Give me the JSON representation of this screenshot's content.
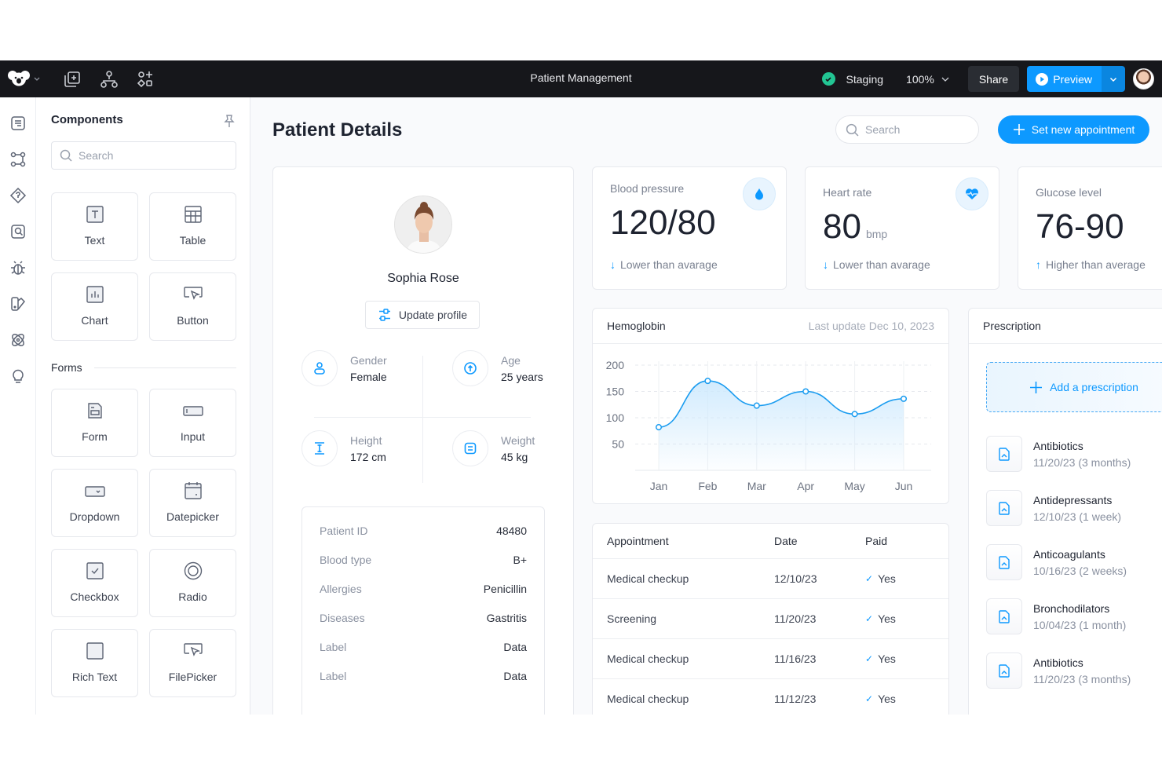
{
  "topbar": {
    "title": "Patient Management",
    "environment": "Staging",
    "environment_status": "ok",
    "zoom": "100%",
    "share_label": "Share",
    "preview_label": "Preview",
    "icons": [
      "koala-logo-icon",
      "add-page-icon",
      "component-tree-icon",
      "add-component-icon"
    ]
  },
  "rail": {
    "icons": [
      "pages-icon",
      "workflows-icon",
      "datasource-icon",
      "queries-icon",
      "debug-icon",
      "theme-icon",
      "plugins-icon",
      "tips-icon"
    ]
  },
  "components_panel": {
    "title": "Components",
    "search_placeholder": "Search",
    "items": [
      {
        "label": "Text",
        "icon": "text-icon"
      },
      {
        "label": "Table",
        "icon": "table-icon"
      },
      {
        "label": "Chart",
        "icon": "chart-icon"
      },
      {
        "label": "Button",
        "icon": "button-icon"
      }
    ],
    "forms_section": "Forms",
    "form_items": [
      {
        "label": "Form",
        "icon": "form-icon"
      },
      {
        "label": "Input",
        "icon": "input-icon"
      },
      {
        "label": "Dropdown",
        "icon": "dropdown-icon"
      },
      {
        "label": "Datepicker",
        "icon": "calendar-icon"
      },
      {
        "label": "Checkbox",
        "icon": "checkbox-icon"
      },
      {
        "label": "Radio",
        "icon": "radio-icon"
      },
      {
        "label": "Rich Text",
        "icon": "rich-text-icon"
      },
      {
        "label": "FilePicker",
        "icon": "filepicker-icon"
      }
    ]
  },
  "page": {
    "title": "Patient Details",
    "search_placeholder": "Search",
    "new_appointment_label": "Set new appointment",
    "accent": "#0d99ff"
  },
  "patient": {
    "name": "Sophia Rose",
    "update_label": "Update profile",
    "stats": [
      {
        "label": "Gender",
        "value": "Female",
        "icon": "user-icon"
      },
      {
        "label": "Age",
        "value": "25 years",
        "icon": "age-icon"
      },
      {
        "label": "Height",
        "value": "172 cm",
        "icon": "height-icon"
      },
      {
        "label": "Weight",
        "value": "45 kg",
        "icon": "weight-icon"
      }
    ],
    "info": [
      {
        "key": "Patient ID",
        "value": "48480"
      },
      {
        "key": "Blood type",
        "value": "B+"
      },
      {
        "key": "Allergies",
        "value": "Penicillin"
      },
      {
        "key": "Diseases",
        "value": "Gastritis"
      },
      {
        "key": "Label",
        "value": "Data"
      },
      {
        "key": "Label",
        "value": "Data"
      }
    ]
  },
  "metrics": [
    {
      "label": "Blood pressure",
      "value": "120/80",
      "unit": "",
      "trend": "Lower than avarage",
      "trend_dir": "down",
      "icon": "blood-drop-icon"
    },
    {
      "label": "Heart rate",
      "value": "80",
      "unit": "bmp",
      "trend": "Lower than avarage",
      "trend_dir": "down",
      "icon": "heart-rate-icon"
    },
    {
      "label": "Glucose level",
      "value": "76-90",
      "unit": "",
      "trend": "Higher than average",
      "trend_dir": "up"
    }
  ],
  "hemoglobin": {
    "title": "Hemoglobin",
    "last_update": "Last update Dec 10, 2023"
  },
  "chart_data": {
    "type": "area",
    "title": "Hemoglobin",
    "categories": [
      "Jan",
      "Feb",
      "Mar",
      "Apr",
      "May",
      "Jun"
    ],
    "values": [
      82,
      170,
      123,
      150,
      107,
      136
    ],
    "y_ticks": [
      50,
      100,
      150,
      200
    ],
    "ylim": [
      0,
      200
    ],
    "grid": true,
    "color": "#1a9cf0"
  },
  "appointments": {
    "headers": [
      "Appointment",
      "Date",
      "Paid"
    ],
    "rows": [
      {
        "name": "Medical checkup",
        "date": "12/10/23",
        "paid": "Yes"
      },
      {
        "name": "Screening",
        "date": "11/20/23",
        "paid": "Yes"
      },
      {
        "name": "Medical checkup",
        "date": "11/16/23",
        "paid": "Yes"
      },
      {
        "name": "Medical checkup",
        "date": "11/12/23",
        "paid": "Yes"
      }
    ]
  },
  "prescription": {
    "title": "Prescription",
    "add_label": "Add a prescription",
    "items": [
      {
        "name": "Antibiotics",
        "date": "11/20/23 (3 months)"
      },
      {
        "name": "Antidepressants",
        "date": "12/10/23 (1 week)"
      },
      {
        "name": "Anticoagulants",
        "date": "10/16/23 (2 weeks)"
      },
      {
        "name": "Bronchodilators",
        "date": "10/04/23 (1 month)"
      },
      {
        "name": "Antibiotics",
        "date": "11/20/23 (3 months)"
      }
    ]
  }
}
